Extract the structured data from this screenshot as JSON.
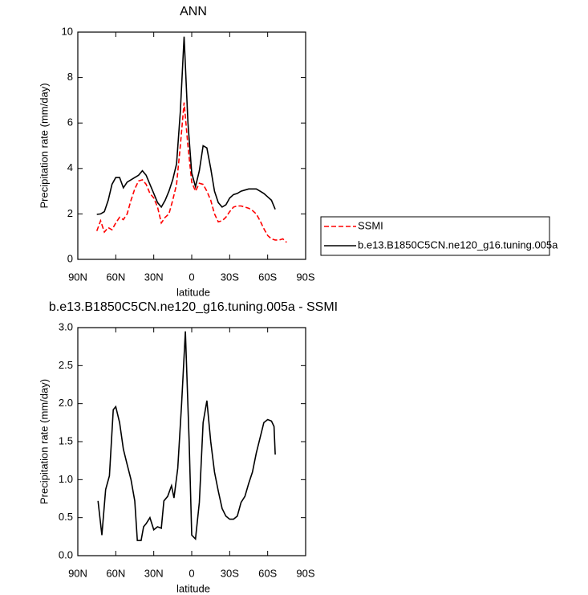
{
  "chart_data": [
    {
      "type": "line",
      "title": "ANN",
      "x_label": "latitude",
      "y_label": "Precipitation rate (mm/day)",
      "x": [
        75,
        72,
        69,
        66,
        63,
        60,
        57,
        54,
        51,
        48,
        45,
        42,
        39,
        36,
        33,
        30,
        27,
        24,
        21,
        18,
        15,
        12,
        9,
        6,
        3,
        0,
        -3,
        -6,
        -9,
        -12,
        -15,
        -18,
        -21,
        -24,
        -27,
        -30,
        -33,
        -36,
        -39,
        -42,
        -45,
        -48,
        -51,
        -54,
        -57,
        -60,
        -63,
        -66,
        -69,
        -72,
        -75
      ],
      "series": [
        {
          "name": "SSMI",
          "color": "#ff0000",
          "line_style": "dashed",
          "values": [
            1.25,
            1.7,
            1.2,
            1.4,
            1.3,
            1.6,
            1.85,
            1.75,
            2.0,
            2.6,
            3.1,
            3.45,
            3.5,
            3.3,
            2.9,
            2.7,
            2.3,
            1.6,
            1.85,
            2.0,
            2.6,
            3.3,
            5.0,
            6.9,
            5.0,
            3.4,
            3.0,
            3.35,
            3.3,
            3.0,
            2.6,
            2.0,
            1.65,
            1.7,
            1.85,
            2.1,
            2.3,
            2.35,
            2.35,
            2.3,
            2.25,
            2.15,
            2.0,
            1.7,
            1.35,
            1.05,
            0.9,
            0.85,
            0.85,
            0.9,
            0.75
          ]
        },
        {
          "name": "b.e13.B1850C5CN.ne120_g16.tuning.005a",
          "color": "#000000",
          "line_style": "solid",
          "values": [
            1.98,
            2.0,
            2.1,
            2.6,
            3.3,
            3.6,
            3.6,
            3.15,
            3.4,
            3.5,
            3.6,
            3.7,
            3.9,
            3.7,
            3.3,
            2.9,
            2.5,
            2.3,
            2.6,
            3.0,
            3.5,
            4.2,
            6.5,
            9.8,
            6.0,
            3.8,
            3.2,
            3.9,
            5.0,
            4.9,
            4.0,
            3.0,
            2.5,
            2.3,
            2.4,
            2.7,
            2.85,
            2.9,
            3.0,
            3.05,
            3.1,
            3.1,
            3.1,
            3.0,
            2.9,
            2.75,
            2.6,
            2.2,
            null,
            null,
            null
          ]
        }
      ],
      "xlim": [
        90,
        -90
      ],
      "xticks": [
        {
          "value": 90,
          "label": "90N"
        },
        {
          "value": 60,
          "label": "60N"
        },
        {
          "value": 30,
          "label": "30N"
        },
        0,
        {
          "value": -30,
          "label": "30S"
        },
        {
          "value": -60,
          "label": "60S"
        },
        {
          "value": -90,
          "label": "90S"
        }
      ],
      "ylim": [
        0,
        10
      ],
      "yticks": [
        0,
        2,
        4,
        6,
        8,
        10
      ],
      "legend": "outside-right"
    },
    {
      "type": "line",
      "title": "b.e13.B1850C5CN.ne120_g16.tuning.005a - SSMI",
      "x_label": "latitude",
      "y_label": "Precipitation rate (mm/day)",
      "x": [
        74,
        71,
        68,
        65,
        62,
        60,
        57,
        54,
        51,
        48,
        45,
        43,
        40,
        38,
        36,
        33,
        30,
        27,
        24,
        22,
        19,
        16,
        14,
        11,
        8,
        5,
        2,
        0,
        -3,
        -6,
        -9,
        -12,
        -15,
        -18,
        -21,
        -24,
        -27,
        -30,
        -33,
        -36,
        -39,
        -42,
        -45,
        -48,
        -51,
        -54,
        -57,
        -60,
        -63,
        -65,
        -66
      ],
      "series": [
        {
          "color": "#000000",
          "line_style": "solid",
          "values": [
            0.72,
            0.27,
            0.87,
            1.05,
            1.92,
            1.96,
            1.75,
            1.4,
            1.2,
            1.0,
            0.72,
            0.2,
            0.2,
            0.38,
            0.42,
            0.5,
            0.34,
            0.38,
            0.36,
            0.72,
            0.78,
            0.92,
            0.76,
            1.15,
            2.0,
            2.95,
            1.5,
            0.27,
            0.22,
            0.7,
            1.75,
            2.04,
            1.5,
            1.1,
            0.85,
            0.62,
            0.52,
            0.48,
            0.48,
            0.52,
            0.7,
            0.78,
            0.95,
            1.1,
            1.35,
            1.55,
            1.75,
            1.79,
            1.77,
            1.7,
            1.33
          ]
        }
      ],
      "xlim": [
        90,
        -90
      ],
      "xticks": [
        {
          "value": 90,
          "label": "90N"
        },
        {
          "value": 60,
          "label": "60N"
        },
        {
          "value": 30,
          "label": "30N"
        },
        0,
        {
          "value": -30,
          "label": "30S"
        },
        {
          "value": -60,
          "label": "60S"
        },
        {
          "value": -90,
          "label": "90S"
        }
      ],
      "ylim": [
        0,
        3
      ],
      "yticks": [
        {
          "value": 0,
          "label": "0.0"
        },
        0.5,
        {
          "value": 1,
          "label": "1.0"
        },
        1.5,
        {
          "value": 2,
          "label": "2.0"
        },
        2.5,
        {
          "value": 3,
          "label": "3.0"
        }
      ]
    }
  ]
}
